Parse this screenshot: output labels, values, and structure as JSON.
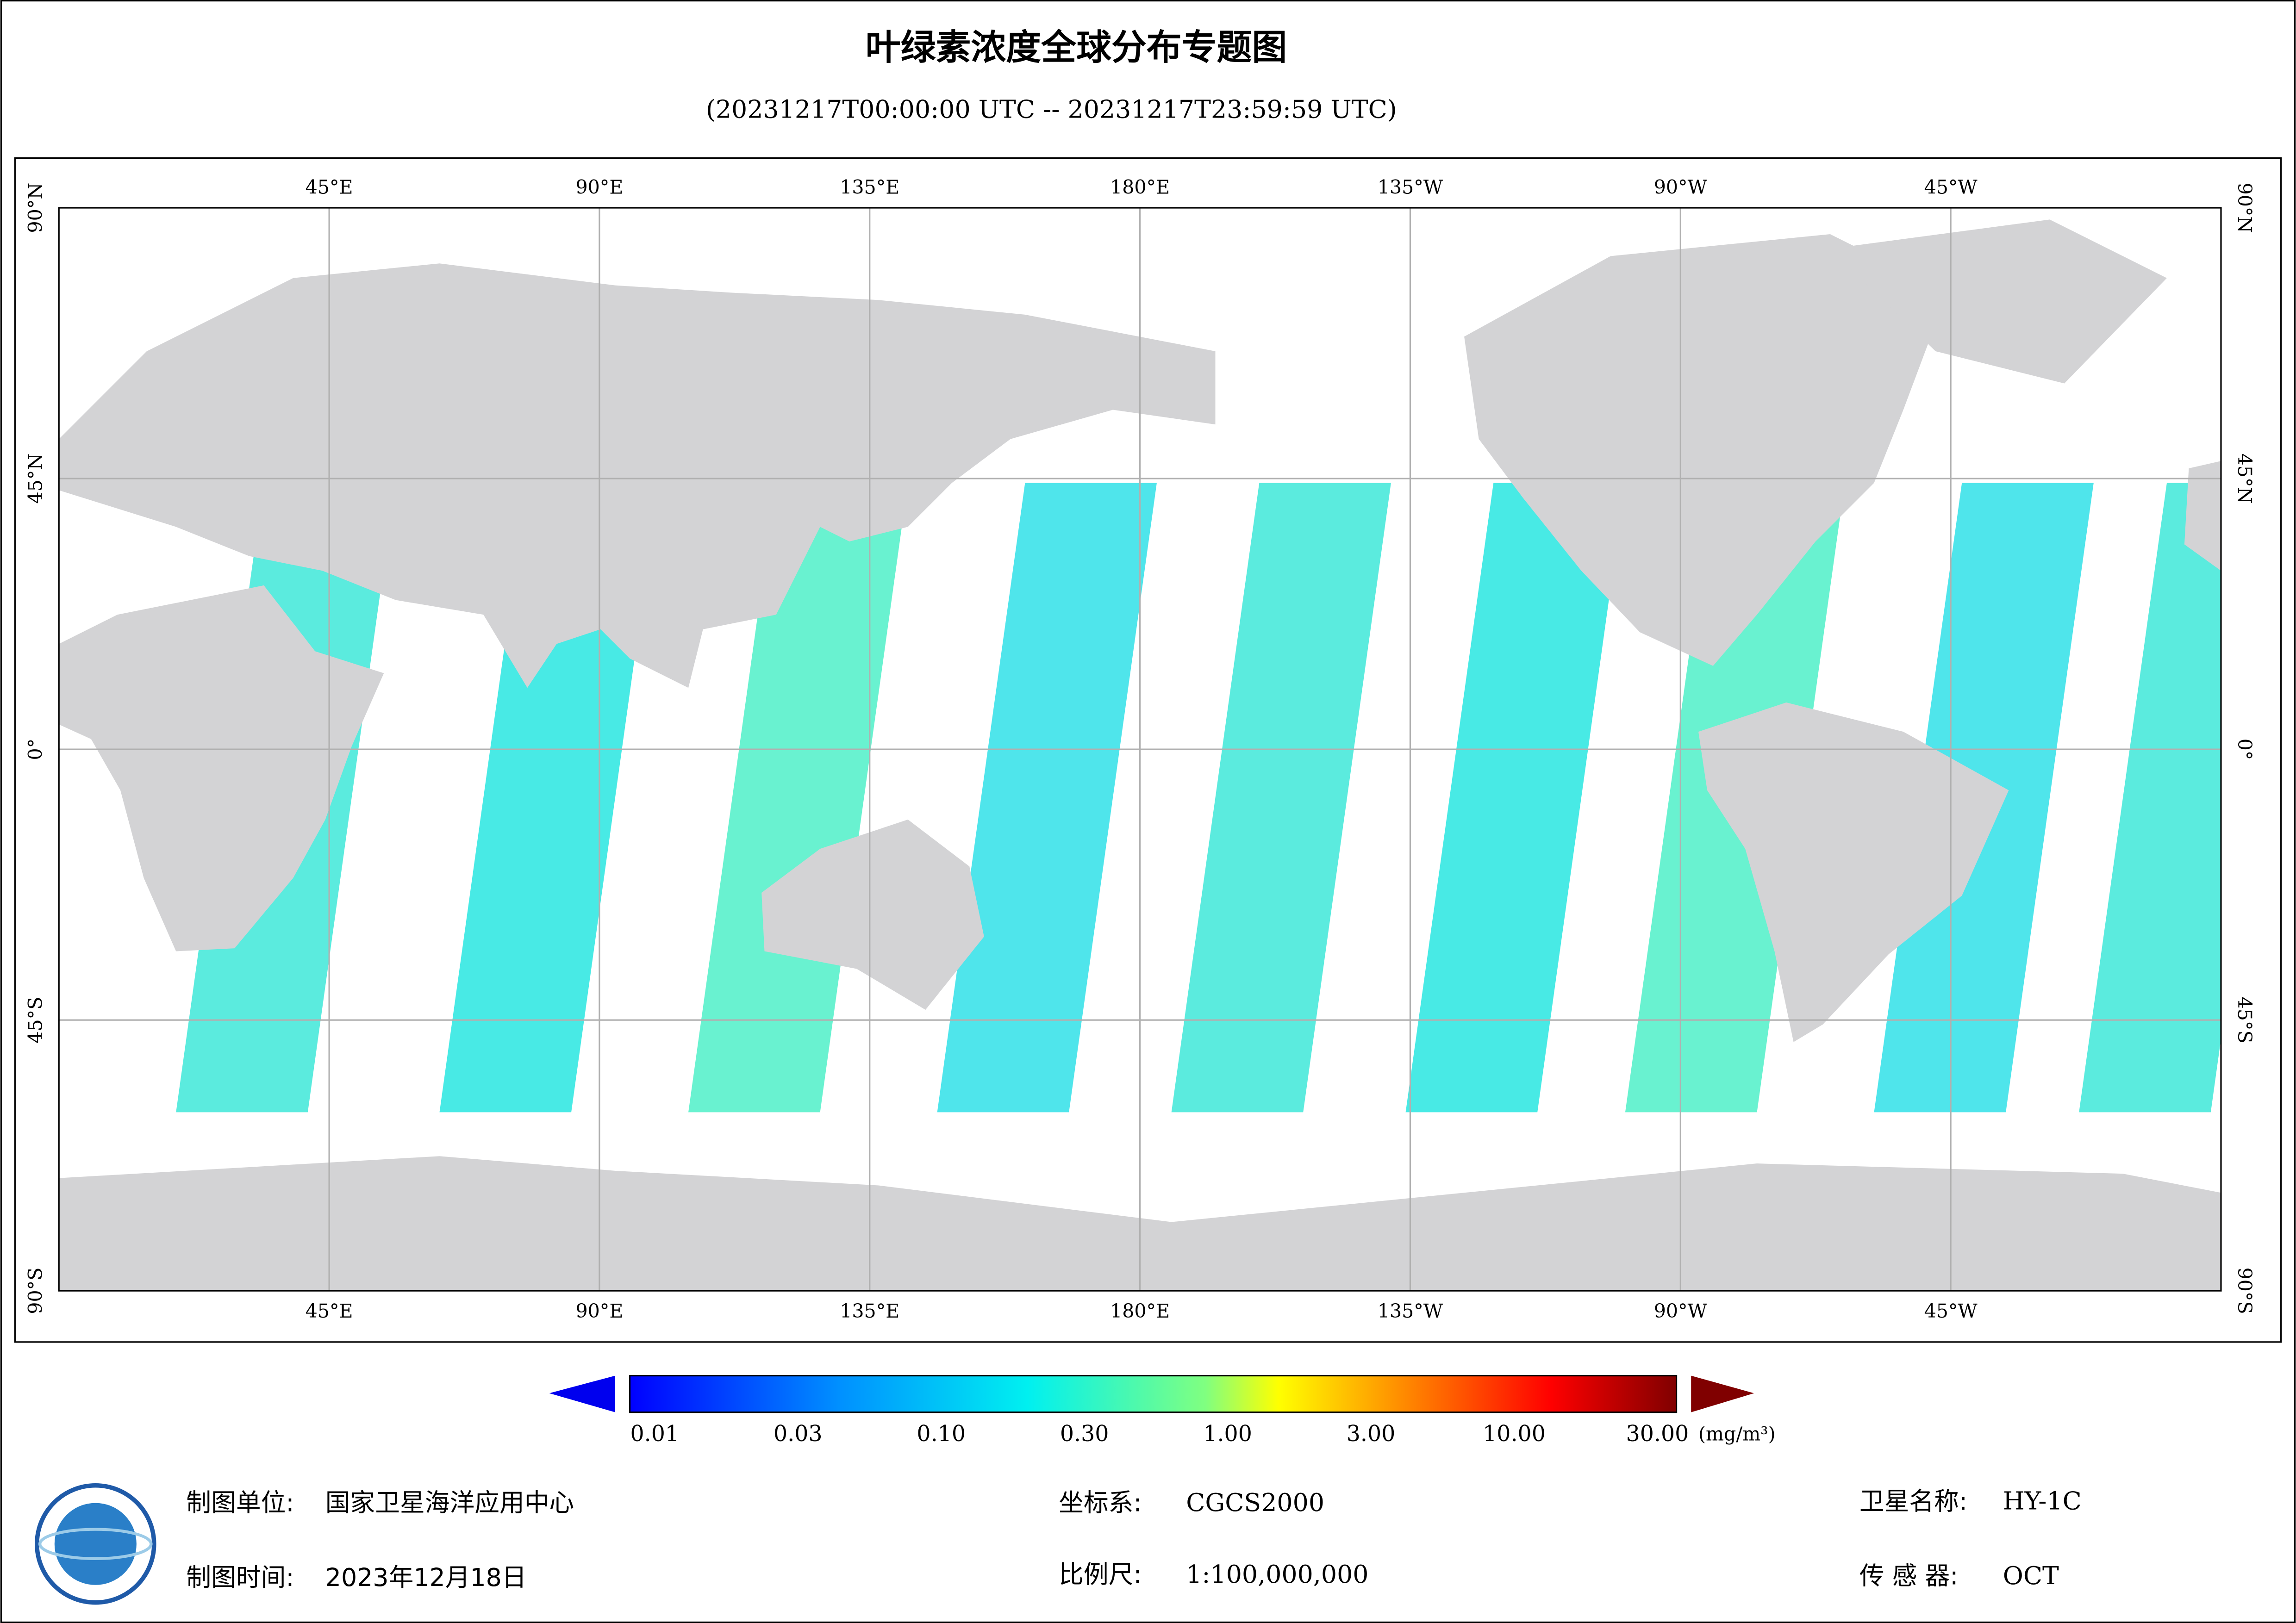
{
  "header": {
    "title": "叶绿素浓度全球分布专题图",
    "subtitle": "(20231217T00:00:00 UTC -- 20231217T23:59:59 UTC)"
  },
  "map": {
    "lon_labels": [
      "45°E",
      "90°E",
      "135°E",
      "180°E",
      "135°W",
      "90°W",
      "45°W"
    ],
    "lat_labels": [
      "90°N",
      "45°N",
      "0°",
      "45°S",
      "90°S"
    ]
  },
  "colorbar": {
    "labels": [
      "0.01",
      "0.03",
      "0.10",
      "0.30",
      "1.00",
      "3.00",
      "10.00",
      "30.00"
    ],
    "unit": "(mg/m³)"
  },
  "footer": {
    "unit_label": "制图单位:",
    "unit": "国家卫星海洋应用中心",
    "date_label": "制图时间:",
    "date": "2023年12月18日",
    "crs_label": "坐标系:",
    "crs": "CGCS2000",
    "scale_label": "比例尺:",
    "scale": "1:100,000,000",
    "satellite_label": "卫星名称:",
    "satellite": "HY-1C",
    "sensor_label": "传 感 器:",
    "sensor": "OCT"
  }
}
